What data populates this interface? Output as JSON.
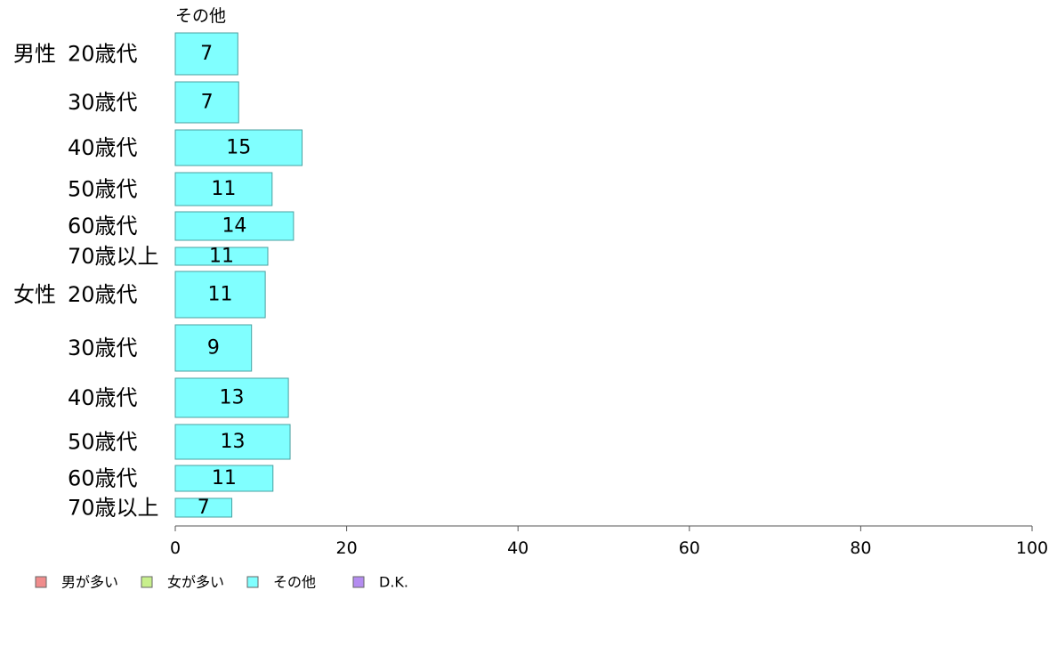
{
  "chart_data": {
    "type": "bar",
    "orientation": "horizontal",
    "title": "その他",
    "groups": [
      {
        "label": "男性",
        "categories": [
          "20歳代",
          "30歳代",
          "40歳代",
          "50歳代",
          "60歳代",
          "70歳以上"
        ]
      },
      {
        "label": "女性",
        "categories": [
          "20歳代",
          "30歳代",
          "40歳代",
          "50歳代",
          "60歳代",
          "70歳以上"
        ]
      }
    ],
    "series": [
      {
        "name": "その他",
        "color": "#80ffff",
        "values": [
          7.3,
          7.4,
          14.8,
          11.3,
          13.8,
          10.8,
          10.5,
          8.9,
          13.2,
          13.4,
          11.4,
          6.6
        ],
        "labels": [
          "7",
          "7",
          "15",
          "11",
          "14",
          "11",
          "11",
          "9",
          "13",
          "13",
          "11",
          "7"
        ]
      }
    ],
    "xlim": [
      0,
      100
    ],
    "xticks": [
      "0",
      "20",
      "40",
      "60",
      "80",
      "100"
    ],
    "xtick_values": [
      0,
      20,
      40,
      60,
      80,
      100
    ],
    "grid": false,
    "legend": {
      "placement": "bottom-left",
      "items": [
        {
          "label": "男が多い",
          "color": "#f08c8c"
        },
        {
          "label": "女が多い",
          "color": "#c8f08c"
        },
        {
          "label": "その他",
          "color": "#80ffff"
        },
        {
          "label": "D.K.",
          "color": "#b48cf0"
        }
      ]
    },
    "colors": {
      "bar_stroke": "#4aa0a0",
      "axis": "#555555"
    }
  }
}
